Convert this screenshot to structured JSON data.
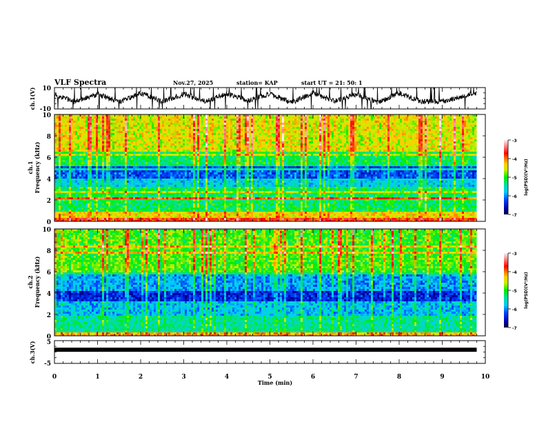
{
  "header": {
    "title": "VLF Spectra",
    "date": "Nov.27, 2025",
    "station": "station= KAP",
    "start_ut": "start  UT =   21: 50: 1"
  },
  "colors": {
    "trace": "#000000",
    "axis": "#000000"
  },
  "chart_data": [
    {
      "type": "line",
      "name": "ch1-waveform",
      "ylabel": "ch.1(V)",
      "ylim": [
        -10,
        10
      ],
      "yticks": [
        "10",
        "-10"
      ],
      "xlim": [
        0,
        10
      ],
      "x_data_end": 9.8,
      "description_series": "noisy oscillating signal, roughly between -8 and 9 V",
      "approx_envelope": {
        "x": [
          0,
          0.5,
          1,
          1.5,
          2,
          2.5,
          3,
          3.5,
          4,
          4.5,
          5,
          5.5,
          6,
          6.5,
          7,
          7.5,
          8,
          8.5,
          9,
          9.5,
          9.8
        ],
        "y": [
          3,
          -3,
          4,
          -4,
          5,
          -3,
          4,
          -3,
          4,
          -2,
          4,
          -4,
          5,
          -3,
          4,
          -4,
          5,
          -3,
          -3,
          2,
          5
        ]
      }
    },
    {
      "type": "heatmap",
      "name": "ch1-spectrogram",
      "ylabel_line1": "ch.1",
      "ylabel_line2": "Frequency  (kHz)",
      "ylim": [
        0,
        10
      ],
      "yticks": [
        "0",
        "2",
        "4",
        "6",
        "8",
        "10"
      ],
      "xlim": [
        0,
        10
      ],
      "x_data_end": 9.8,
      "colorbar": {
        "label": "log(PSD)(V²/Hz)",
        "range": [
          -7,
          -3
        ],
        "ticks": [
          "-3",
          "-4",
          "-5",
          "-6",
          "-7"
        ]
      },
      "bands_log_psd": [
        {
          "f0": 0,
          "f1": 0.3,
          "level": -3.8
        },
        {
          "f0": 0.3,
          "f1": 1.0,
          "level": -4.4
        },
        {
          "f0": 1.0,
          "f1": 2.1,
          "level": -5.2
        },
        {
          "f0": 2.1,
          "f1": 2.2,
          "level": -3.9
        },
        {
          "f0": 2.2,
          "f1": 3.2,
          "level": -5.2
        },
        {
          "f0": 3.2,
          "f1": 4.0,
          "level": -5.7
        },
        {
          "f0": 4.0,
          "f1": 5.2,
          "level": -6.2
        },
        {
          "f0": 5.2,
          "f1": 6.5,
          "level": -5.2
        },
        {
          "f0": 6.5,
          "f1": 10,
          "level": -4.5
        }
      ]
    },
    {
      "type": "heatmap",
      "name": "ch2-spectrogram",
      "ylabel_line1": "ch.2",
      "ylabel_line2": "Frequency  (kHz)",
      "ylim": [
        0,
        10
      ],
      "yticks": [
        "0",
        "2",
        "4",
        "6",
        "8",
        "10"
      ],
      "xlim": [
        0,
        10
      ],
      "x_data_end": 9.8,
      "colorbar": {
        "label": "log(PSD)(V²/Hz)",
        "range": [
          -7,
          -3
        ],
        "ticks": [
          "-3",
          "-4",
          "-5",
          "-6",
          "-7"
        ]
      },
      "bands_log_psd": [
        {
          "f0": 0,
          "f1": 0.4,
          "level": -4.2
        },
        {
          "f0": 0.4,
          "f1": 1.8,
          "level": -5.4
        },
        {
          "f0": 1.8,
          "f1": 1.9,
          "level": -4.0
        },
        {
          "f0": 1.9,
          "f1": 3.2,
          "level": -5.8
        },
        {
          "f0": 3.2,
          "f1": 4.2,
          "level": -6.4
        },
        {
          "f0": 4.2,
          "f1": 6.0,
          "level": -5.9
        },
        {
          "f0": 6.0,
          "f1": 10,
          "level": -4.9
        }
      ]
    },
    {
      "type": "line",
      "name": "ch3-waveform",
      "ylabel": "ch.3(V)",
      "ylim": [
        -5,
        5
      ],
      "yticks": [
        "5",
        "-5"
      ],
      "xlim": [
        0,
        10
      ],
      "x_data_end": 9.8,
      "level": 1.0,
      "xlabel": "Time  (min)",
      "xticks": [
        "0",
        "1",
        "2",
        "3",
        "4",
        "5",
        "6",
        "7",
        "8",
        "9",
        "10"
      ]
    }
  ]
}
